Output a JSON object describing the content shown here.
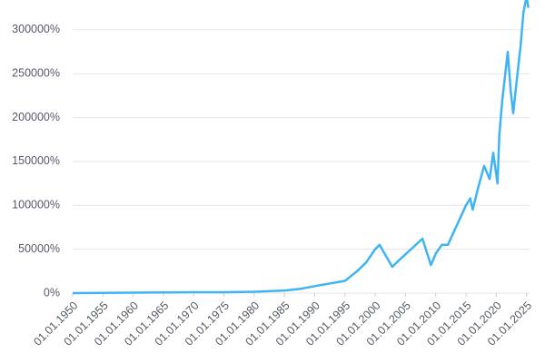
{
  "chart_data": {
    "type": "line",
    "x": [
      1950,
      1955,
      1960,
      1965,
      1970,
      1975,
      1980,
      1985,
      1987.7,
      1990,
      1995,
      1997,
      1998.5,
      2000,
      2000.7,
      2002.8,
      2004,
      2007.8,
      2009.2,
      2010,
      2011,
      2012,
      2013,
      2014,
      2015,
      2015.7,
      2016.1,
      2017,
      2018,
      2018.9,
      2019.5,
      2020.2,
      2020.5,
      2021,
      2021.9,
      2022.4,
      2022.8,
      2023.5,
      2024,
      2024.5,
      2025,
      2025.3
    ],
    "series": [
      {
        "color": "#3fb3f4",
        "values": [
          0,
          200,
          500,
          800,
          1000,
          1000,
          1500,
          3000,
          5000,
          8000,
          14000,
          25000,
          35000,
          50000,
          55000,
          30000,
          38000,
          62000,
          32000,
          45000,
          55000,
          55000,
          70000,
          85000,
          100000,
          108000,
          95000,
          120000,
          145000,
          130000,
          160000,
          125000,
          180000,
          220000,
          275000,
          230000,
          205000,
          250000,
          280000,
          320000,
          338000,
          325000
        ]
      }
    ],
    "xlim": [
      1950,
      2025.5
    ],
    "xticks": [
      {
        "value": 1950,
        "label": "01.01.1950"
      },
      {
        "value": 1955,
        "label": "01.01.1955"
      },
      {
        "value": 1960,
        "label": "01.01.1960"
      },
      {
        "value": 1965,
        "label": "01.01.1965"
      },
      {
        "value": 1970,
        "label": "01.01.1970"
      },
      {
        "value": 1975,
        "label": "01.01.1975"
      },
      {
        "value": 1980,
        "label": "01.01.1980"
      },
      {
        "value": 1985,
        "label": "01.01.1985"
      },
      {
        "value": 1990,
        "label": "01.01.1990"
      },
      {
        "value": 1995,
        "label": "01.01.1995"
      },
      {
        "value": 2000,
        "label": "01.01.2000"
      },
      {
        "value": 2005,
        "label": "01.01.2005"
      },
      {
        "value": 2010,
        "label": "01.01.2010"
      },
      {
        "value": 2015,
        "label": "01.01.2015"
      },
      {
        "value": 2020,
        "label": "01.01.2020"
      },
      {
        "value": 2025,
        "label": "01.01.2025"
      }
    ],
    "ylim": [
      0,
      334000
    ],
    "yticks": [
      {
        "value": 0,
        "label": "0%"
      },
      {
        "value": 50000,
        "label": "50000%"
      },
      {
        "value": 100000,
        "label": "100000%"
      },
      {
        "value": 150000,
        "label": "150000%"
      },
      {
        "value": 200000,
        "label": "200000%"
      },
      {
        "value": 250000,
        "label": "250000%"
      },
      {
        "value": 300000,
        "label": "300000%"
      }
    ],
    "grid": true
  }
}
